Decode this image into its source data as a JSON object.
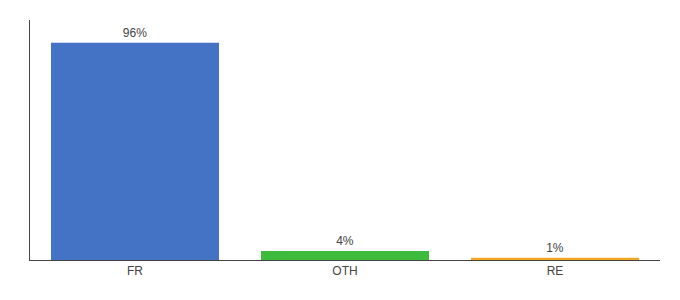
{
  "chart_data": {
    "type": "bar",
    "categories": [
      "FR",
      "OTH",
      "RE"
    ],
    "values": [
      96,
      4,
      1
    ],
    "value_labels": [
      "96%",
      "4%",
      "1%"
    ],
    "data_labels": true,
    "colors": [
      "#4472c4",
      "#3dbb3d",
      "#f5a623"
    ],
    "ylim": [
      0,
      106
    ],
    "tick_labels": "x",
    "grid": false
  }
}
